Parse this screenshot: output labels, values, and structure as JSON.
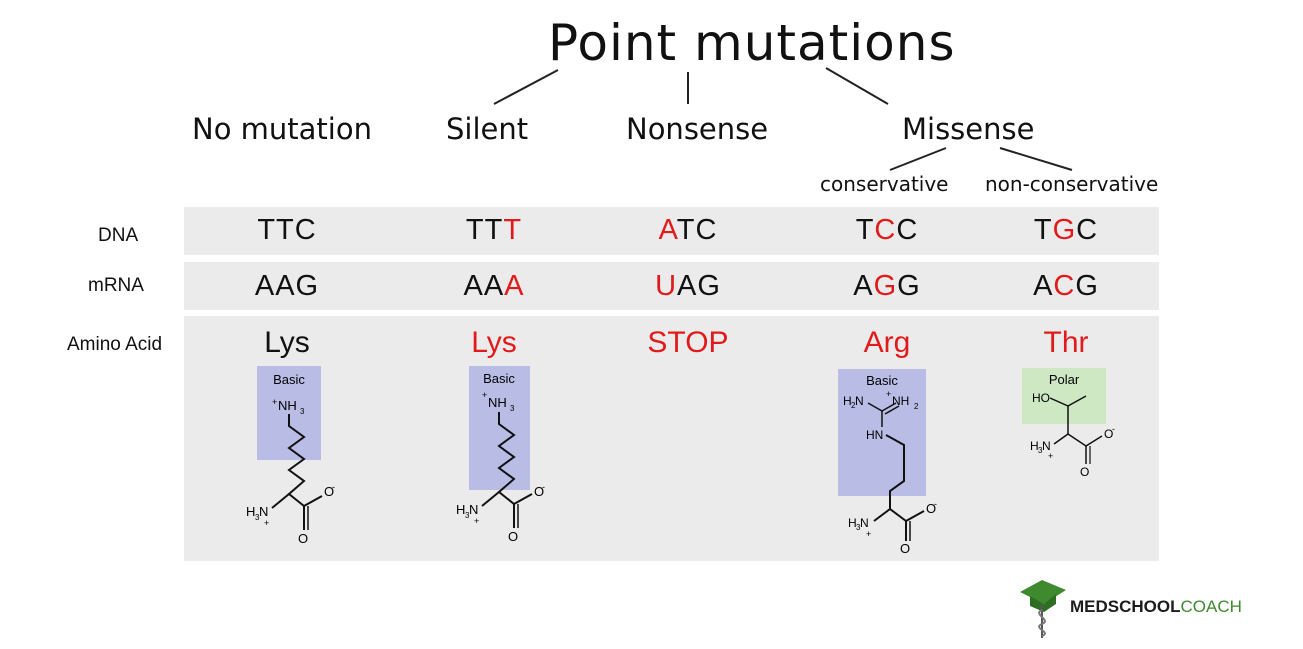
{
  "title": "Point mutations",
  "categories": {
    "no_mutation": "No mutation",
    "silent": "Silent",
    "nonsense": "Nonsense",
    "missense": "Missense"
  },
  "missense_types": {
    "conservative": "conservative",
    "non_conservative": "non-conservative"
  },
  "row_labels": {
    "dna": "DNA",
    "mrna": "mRNA",
    "amino_acid": "Amino Acid"
  },
  "columns": [
    {
      "dna": [
        {
          "t": "TTC",
          "m": false
        }
      ],
      "mrna": [
        {
          "t": "AAG",
          "m": false
        }
      ],
      "amino_acid": "Lys",
      "aa_mutated": false,
      "property": "Basic",
      "molecule": "lysine",
      "mol_labels": {
        "amine": "NH",
        "alpha": "H",
        "oxy": "O"
      }
    },
    {
      "dna": [
        {
          "t": "TT",
          "m": false
        },
        {
          "t": "T",
          "m": true
        }
      ],
      "mrna": [
        {
          "t": "AA",
          "m": false
        },
        {
          "t": "A",
          "m": true
        }
      ],
      "amino_acid": "Lys",
      "aa_mutated": true,
      "property": "Basic",
      "molecule": "lysine",
      "mol_labels": {
        "amine": "NH",
        "alpha": "H",
        "oxy": "O"
      }
    },
    {
      "dna": [
        {
          "t": "A",
          "m": true
        },
        {
          "t": "TC",
          "m": false
        }
      ],
      "mrna": [
        {
          "t": "U",
          "m": true
        },
        {
          "t": "AG",
          "m": false
        }
      ],
      "amino_acid": "STOP",
      "aa_mutated": true,
      "property": "",
      "molecule": ""
    },
    {
      "dna": [
        {
          "t": "T",
          "m": false
        },
        {
          "t": "C",
          "m": true
        },
        {
          "t": "C",
          "m": false
        }
      ],
      "mrna": [
        {
          "t": "A",
          "m": false
        },
        {
          "t": "G",
          "m": true
        },
        {
          "t": "G",
          "m": false
        }
      ],
      "amino_acid": "Arg",
      "aa_mutated": true,
      "property": "Basic",
      "molecule": "arginine",
      "mol_labels": {
        "h2n": "H N",
        "nh2": "NH",
        "hn": "HN",
        "alpha": "H N",
        "oxy": "O"
      }
    },
    {
      "dna": [
        {
          "t": "T",
          "m": false
        },
        {
          "t": "G",
          "m": true
        },
        {
          "t": "C",
          "m": false
        }
      ],
      "mrna": [
        {
          "t": "A",
          "m": false
        },
        {
          "t": "C",
          "m": true
        },
        {
          "t": "G",
          "m": false
        }
      ],
      "amino_acid": "Thr",
      "aa_mutated": true,
      "property": "Polar",
      "molecule": "threonine",
      "mol_labels": {
        "ho": "HO",
        "alpha": "H N",
        "oxy": "O"
      }
    }
  ],
  "colors": {
    "mutation": "#e11b1b",
    "basic_box": "#b9bde6",
    "polar_box": "#cfe8c4",
    "band": "#ebebeb",
    "logo_green": "#3f8a2e"
  },
  "logo": {
    "part1": "MEDSCHOOL",
    "part2": "COACH",
    "icon": "graduation-cap-caduceus-icon"
  }
}
